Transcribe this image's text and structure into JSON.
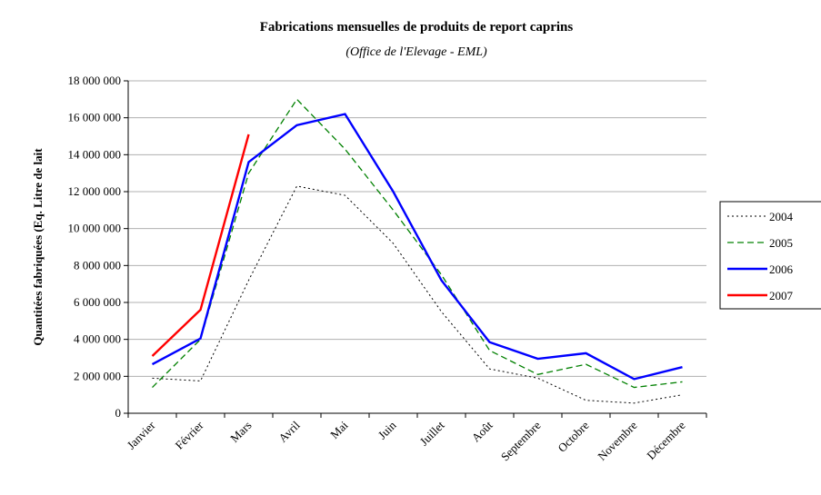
{
  "chart_data": {
    "type": "line",
    "title": "Fabrications mensuelles de produits de report caprins",
    "subtitle": "(Office de l'Elevage - EML)",
    "y_label": "Quantitées fabriquées (Eq. Litre de lait",
    "categories": [
      "Janvier",
      "Février",
      "Mars",
      "Avril",
      "Mai",
      "Juin",
      "Juillet",
      "Août",
      "Septembre",
      "Octobre",
      "Novembre",
      "Décembre"
    ],
    "series": [
      {
        "name": "2004",
        "color": "#000000",
        "dash": "dotted",
        "values": [
          1900000,
          1750000,
          7200000,
          12300000,
          11800000,
          9200000,
          5500000,
          2400000,
          1900000,
          700000,
          550000,
          1000000
        ]
      },
      {
        "name": "2005",
        "color": "#008000",
        "dash": "dashed",
        "values": [
          1400000,
          4000000,
          13000000,
          17000000,
          14300000,
          11000000,
          7500000,
          3400000,
          2100000,
          2650000,
          1400000,
          1700000
        ]
      },
      {
        "name": "2006",
        "color": "#0000ff",
        "dash": "solid",
        "values": [
          2650000,
          4050000,
          13600000,
          15600000,
          16200000,
          12000000,
          7200000,
          3850000,
          2950000,
          3250000,
          1850000,
          2500000
        ]
      },
      {
        "name": "2007",
        "color": "#ff0000",
        "dash": "solid",
        "values": [
          3100000,
          5600000,
          15100000,
          null,
          null,
          null,
          null,
          null,
          null,
          null,
          null,
          null
        ]
      }
    ],
    "ylim": [
      0,
      18000000
    ],
    "yticks": [
      0,
      {
        "value": 2000000,
        "label": "2 000 000"
      },
      {
        "value": 4000000,
        "label": "4 000 000"
      },
      {
        "value": 6000000,
        "label": "6 000 000"
      },
      {
        "value": 8000000,
        "label": "8 000 000"
      },
      {
        "value": 10000000,
        "label": "10 000 000"
      },
      {
        "value": 12000000,
        "label": "12 000 000"
      },
      {
        "value": 14000000,
        "label": "14 000 000"
      },
      {
        "value": 16000000,
        "label": "16 000 000"
      },
      {
        "value": 18000000,
        "label": "18 000 000"
      }
    ],
    "grid": true,
    "legend": "right"
  }
}
